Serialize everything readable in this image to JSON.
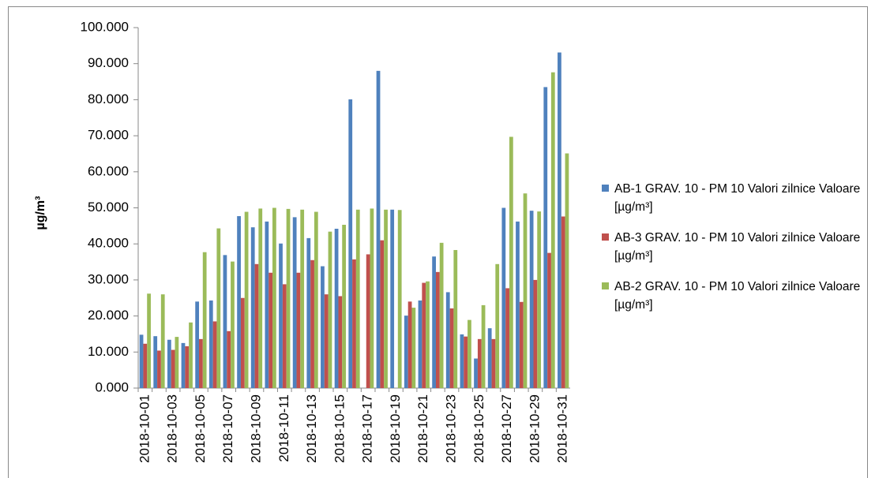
{
  "chart_data": {
    "type": "bar",
    "y_label": "µg/m³",
    "categories": [
      "2018-10-01",
      null,
      "2018-10-03",
      null,
      "2018-10-05",
      null,
      "2018-10-07",
      null,
      "2018-10-09",
      null,
      "2018-10-11",
      null,
      "2018-10-13",
      null,
      "2018-10-15",
      null,
      "2018-10-17",
      null,
      "2018-10-19",
      null,
      "2018-10-21",
      null,
      "2018-10-23",
      null,
      "2018-10-25",
      null,
      "2018-10-27",
      null,
      "2018-10-29",
      null,
      "2018-10-31"
    ],
    "series": [
      {
        "name": "AB-1 GRAV. 10 - PM 10 Valori zilnice Valoare [µg/m³]",
        "color": "#4f81bd",
        "values": [
          14.8,
          14.4,
          13.4,
          12.5,
          24.0,
          24.3,
          36.9,
          47.7,
          44.6,
          46.2,
          40.1,
          47.4,
          41.6,
          33.8,
          44.2,
          80.1,
          null,
          88.0,
          49.5,
          20.1,
          24.3,
          36.5,
          26.6,
          14.9,
          8.2,
          16.6,
          50.0,
          46.2,
          49.2,
          83.5,
          93.1
        ]
      },
      {
        "name": "AB-3 GRAV. 10 - PM 10 Valori zilnice Valoare [µg/m³]",
        "color": "#c0504d",
        "values": [
          12.3,
          10.4,
          10.6,
          11.6,
          13.6,
          18.5,
          15.8,
          25.0,
          34.4,
          32.0,
          28.8,
          32.0,
          35.5,
          26.0,
          25.5,
          35.7,
          37.1,
          41.0,
          null,
          24.0,
          29.2,
          32.2,
          22.1,
          14.3,
          13.6,
          13.6,
          27.7,
          23.9,
          30.0,
          37.5,
          47.6
        ]
      },
      {
        "name": "AB-2 GRAV. 10 - PM 10 Valori zilnice Valoare [µg/m³]",
        "color": "#9bbb59",
        "values": [
          26.2,
          26.0,
          14.2,
          18.2,
          37.7,
          44.3,
          35.1,
          48.9,
          49.8,
          50.0,
          49.7,
          49.5,
          48.9,
          43.4,
          45.3,
          49.5,
          49.8,
          49.5,
          49.4,
          22.3,
          29.6,
          40.3,
          38.3,
          18.9,
          23.0,
          34.4,
          69.7,
          54.0,
          49.0,
          87.6,
          65.1
        ]
      }
    ],
    "ylim": [
      0,
      100
    ],
    "yticks": [
      {
        "value": 0,
        "label": "0.000"
      },
      {
        "value": 10,
        "label": "10.000"
      },
      {
        "value": 20,
        "label": "20.000"
      },
      {
        "value": 30,
        "label": "30.000"
      },
      {
        "value": 40,
        "label": "40.000"
      },
      {
        "value": 50,
        "label": "50.000"
      },
      {
        "value": 60,
        "label": "60.000"
      },
      {
        "value": 70,
        "label": "70.000"
      },
      {
        "value": 80,
        "label": "80.000"
      },
      {
        "value": 90,
        "label": "90.000"
      },
      {
        "value": 100,
        "label": "100.000"
      }
    ],
    "grid": false,
    "legend": "right"
  }
}
